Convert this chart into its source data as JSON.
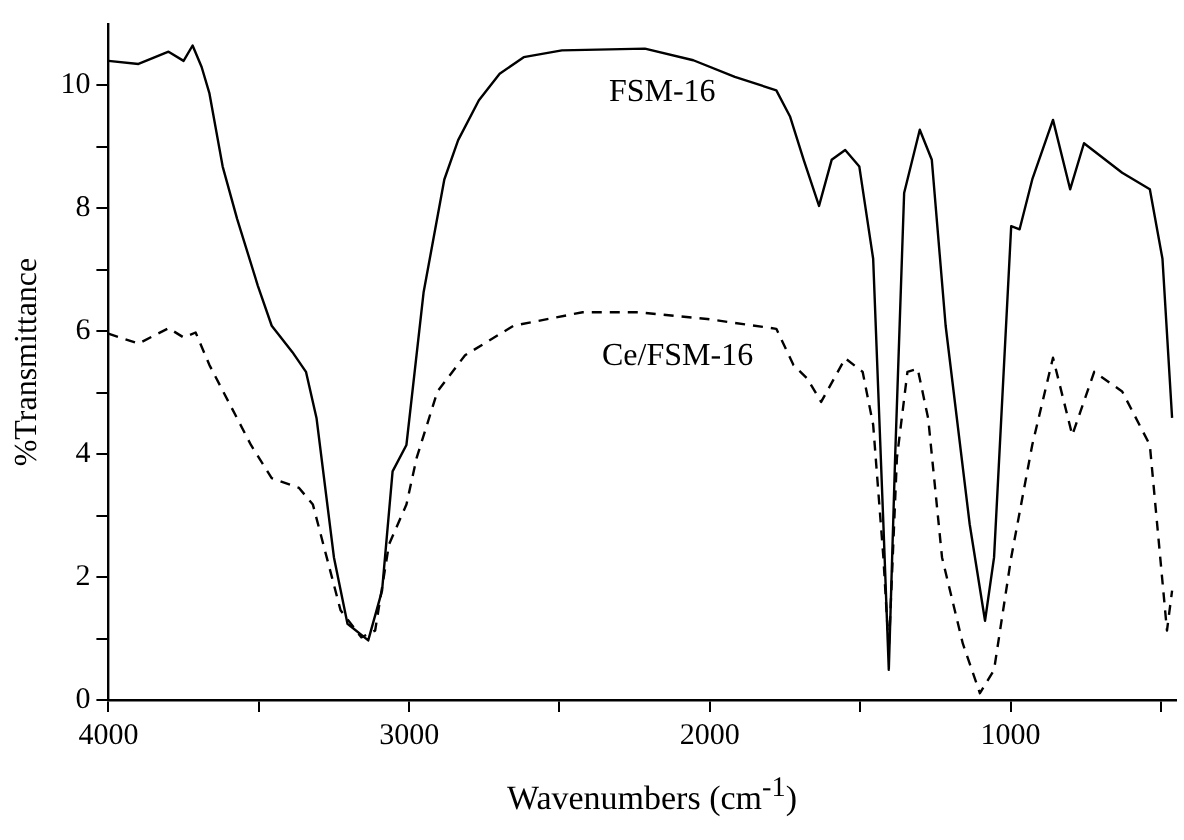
{
  "chart_data": {
    "type": "line",
    "xlabel": "Wavenumbers (cm$^{-1}$)",
    "ylabel": "%Transmittance",
    "xlim": [
      4000,
      450
    ],
    "ylim": [
      0,
      11
    ],
    "xticks": [
      4000,
      {
        "value": 3500,
        "label": null
      },
      3000,
      {
        "value": 2500,
        "label": null
      },
      2000,
      {
        "value": 1500,
        "label": null
      },
      1000,
      {
        "value": 500,
        "label": null
      }
    ],
    "yticks": [
      0,
      {
        "value": 1,
        "label": null
      },
      2,
      {
        "value": 3,
        "label": null
      },
      4,
      {
        "value": 5,
        "label": null
      },
      6,
      {
        "value": 7,
        "label": null
      },
      8,
      {
        "value": 9,
        "label": null
      },
      10
    ],
    "grid": false,
    "legend": false,
    "marker": "none",
    "series": [
      {
        "name": "FSM-16",
        "color": "#000000",
        "line_style": "solid",
        "x": [
          4000,
          3900,
          3800,
          3750,
          3720,
          3690,
          3664,
          3620,
          3572,
          3503,
          3457,
          3388,
          3343,
          3308,
          3250,
          3205,
          3136,
          3090,
          3055,
          3009,
          2952,
          2883,
          2837,
          2768,
          2699,
          2619,
          2492,
          2216,
          2055,
          1917,
          1779,
          1733,
          1688,
          1637,
          1595,
          1550,
          1503,
          1457,
          1423,
          1405,
          1384,
          1354,
          1302,
          1262,
          1216,
          1136,
          1085,
          1055,
          998,
          970,
          928,
          859,
          802,
          756,
          629,
          537,
          495,
          463
        ],
        "values": [
          10.4,
          10.35,
          10.55,
          10.4,
          10.65,
          10.3,
          9.87,
          8.68,
          7.83,
          6.74,
          6.09,
          5.66,
          5.34,
          4.59,
          2.32,
          1.24,
          0.97,
          1.78,
          3.72,
          4.15,
          6.63,
          8.47,
          9.11,
          9.76,
          10.19,
          10.46,
          10.57,
          10.6,
          10.41,
          10.14,
          9.92,
          9.49,
          8.79,
          8.04,
          8.79,
          8.95,
          8.68,
          7.18,
          2.86,
          0.49,
          3.94,
          8.25,
          9.28,
          8.79,
          6.09,
          2.86,
          1.29,
          2.32,
          7.71,
          7.66,
          8.47,
          9.44,
          8.31,
          9.06,
          8.58,
          8.31,
          7.18,
          4.59
        ]
      },
      {
        "name": "Ce/FSM-16",
        "color": "#000000",
        "line_style": "dashed",
        "x": [
          4000,
          3900,
          3800,
          3750,
          3710,
          3664,
          3595,
          3526,
          3457,
          3366,
          3320,
          3274,
          3228,
          3159,
          3113,
          3067,
          3009,
          2975,
          2906,
          2814,
          2653,
          2423,
          2239,
          2009,
          1779,
          1722,
          1676,
          1630,
          1550,
          1492,
          1457,
          1423,
          1405,
          1378,
          1343,
          1309,
          1274,
          1228,
          1159,
          1102,
          1055,
          998,
          928,
          859,
          795,
          722,
          629,
          537,
          480,
          463
        ],
        "values": [
          5.96,
          5.8,
          6.05,
          5.9,
          5.98,
          5.45,
          4.8,
          4.15,
          3.61,
          3.45,
          3.18,
          2.32,
          1.46,
          1.02,
          1.13,
          2.53,
          3.18,
          3.94,
          5.02,
          5.61,
          6.09,
          6.31,
          6.31,
          6.2,
          6.04,
          5.45,
          5.23,
          4.85,
          5.56,
          5.34,
          4.48,
          2.32,
          0.81,
          3.94,
          5.34,
          5.39,
          4.58,
          2.32,
          0.92,
          0.11,
          0.49,
          2.32,
          4.15,
          5.57,
          4.31,
          5.34,
          5.02,
          4.15,
          1.13,
          1.78
        ]
      }
    ]
  }
}
